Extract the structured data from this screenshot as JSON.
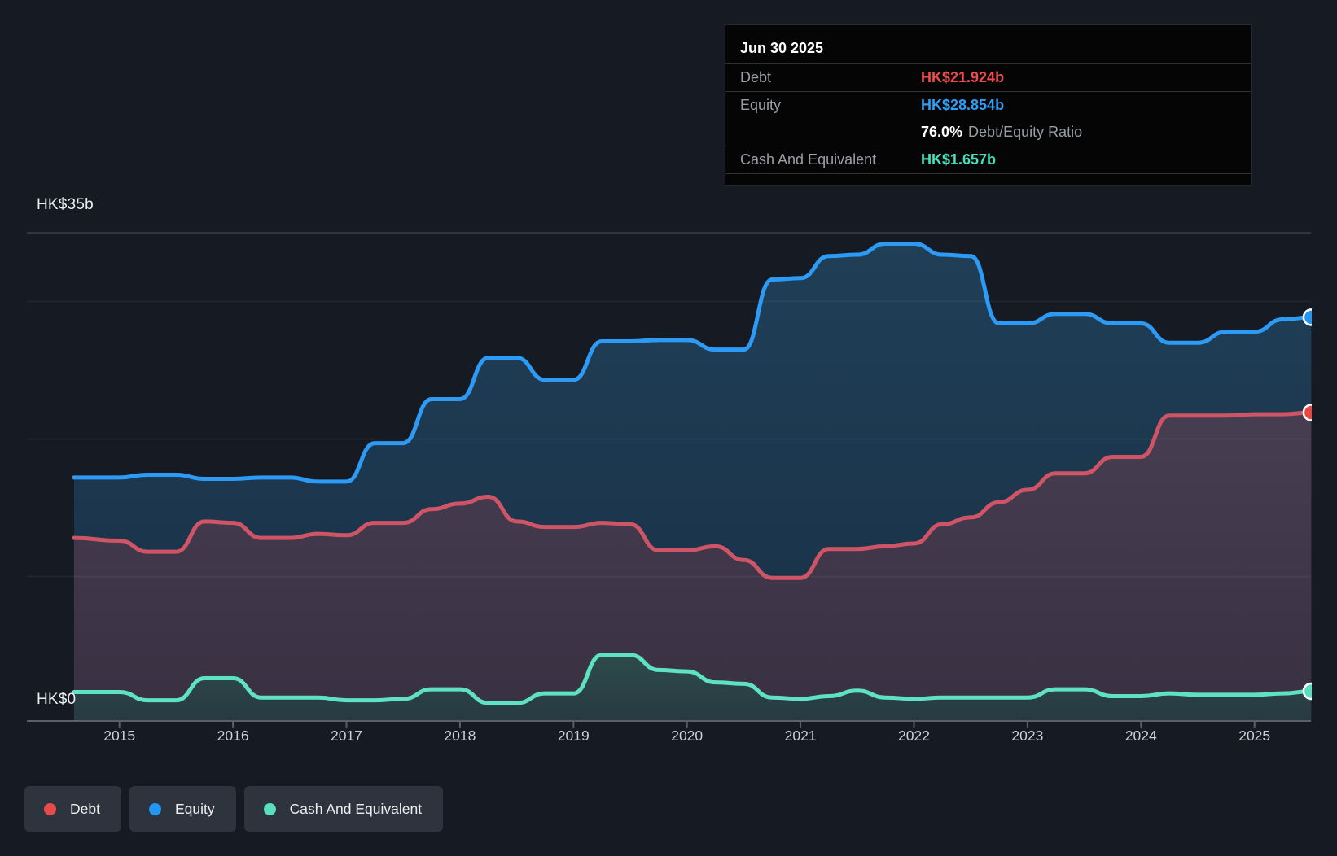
{
  "tooltip": {
    "date": "Jun 30 2025",
    "debt_label": "Debt",
    "debt_value": "HK$21.924b",
    "equity_label": "Equity",
    "equity_value": "HK$28.854b",
    "ratio_value": "76.0%",
    "ratio_label": "Debt/Equity Ratio",
    "cash_label": "Cash And Equivalent",
    "cash_value": "HK$1.657b",
    "debt_color": "#f04b4c",
    "equity_color": "#2f9ef5",
    "cash_color": "#42e1bd"
  },
  "axis": {
    "y_top_label": "HK$35b",
    "y_zero_label": "HK$0"
  },
  "legend": [
    {
      "label": "Debt",
      "color": "#e8494a"
    },
    {
      "label": "Equity",
      "color": "#2196f3"
    },
    {
      "label": "Cash And Equivalent",
      "color": "#57dfc0"
    }
  ],
  "colors": {
    "background": "#151a23",
    "gridline_top": "rgba(255,255,255,0.17)",
    "gridline": "rgba(255,255,255,0.055)",
    "axis_line": "#596069"
  },
  "chart_data": {
    "type": "area",
    "xlabel": "",
    "ylabel": "HK$ billions",
    "ylim": [
      0,
      35
    ],
    "y_gridlines": [
      35,
      30,
      20,
      10
    ],
    "x_axis_years": [
      2015,
      2016,
      2017,
      2018,
      2019,
      2020,
      2021,
      2022,
      2023,
      2024,
      2025
    ],
    "x_range": [
      2014.6,
      2025.5
    ],
    "last_point_date": "Jun 30 2025",
    "x": [
      2014.6,
      2015,
      2015.25,
      2015.5,
      2015.75,
      2016,
      2016.25,
      2016.5,
      2016.75,
      2017,
      2017.25,
      2017.5,
      2017.75,
      2018,
      2018.25,
      2018.5,
      2018.75,
      2019,
      2019.25,
      2019.5,
      2019.75,
      2020,
      2020.25,
      2020.5,
      2020.75,
      2021,
      2021.25,
      2021.5,
      2021.75,
      2022,
      2022.25,
      2022.5,
      2022.75,
      2023,
      2023.25,
      2023.5,
      2023.75,
      2024,
      2024.25,
      2024.5,
      2024.75,
      2025,
      2025.25,
      2025.5
    ],
    "series": [
      {
        "name": "Equity",
        "line_color": "#2d9bf5",
        "marker_color": "#2196f3",
        "values": [
          17.2,
          17.2,
          17.4,
          17.4,
          17.1,
          17.1,
          17.2,
          17.2,
          16.9,
          16.9,
          19.7,
          19.7,
          22.9,
          22.9,
          25.9,
          25.9,
          24.3,
          24.3,
          27.1,
          27.1,
          27.2,
          27.2,
          26.5,
          26.5,
          31.6,
          31.7,
          33.3,
          33.4,
          34.2,
          34.2,
          33.4,
          33.3,
          28.4,
          28.4,
          29.1,
          29.1,
          28.4,
          28.4,
          27.0,
          27.0,
          27.8,
          27.8,
          28.7,
          28.854
        ]
      },
      {
        "name": "Debt",
        "line_color": "#cf5566",
        "marker_color": "#ee4343",
        "values": [
          12.8,
          12.6,
          11.8,
          11.8,
          14.0,
          13.9,
          12.8,
          12.8,
          13.1,
          13.0,
          13.9,
          13.9,
          14.9,
          15.3,
          15.8,
          14.0,
          13.6,
          13.6,
          13.9,
          13.8,
          11.9,
          11.9,
          12.2,
          11.2,
          9.9,
          9.9,
          12.0,
          12.0,
          12.2,
          12.4,
          13.8,
          14.3,
          15.4,
          16.3,
          17.5,
          17.5,
          18.7,
          18.7,
          21.7,
          21.7,
          21.7,
          21.8,
          21.8,
          21.924
        ]
      },
      {
        "name": "Cash And Equivalent",
        "line_color": "#5fe2c3",
        "marker_color": "#57dfc0",
        "values": [
          1.6,
          1.6,
          1.0,
          1.0,
          2.6,
          2.6,
          1.2,
          1.2,
          1.2,
          1.0,
          1.0,
          1.1,
          1.8,
          1.8,
          0.8,
          0.8,
          1.5,
          1.5,
          4.3,
          4.3,
          3.2,
          3.1,
          2.3,
          2.2,
          1.2,
          1.1,
          1.3,
          1.7,
          1.2,
          1.1,
          1.2,
          1.2,
          1.2,
          1.2,
          1.8,
          1.8,
          1.3,
          1.3,
          1.5,
          1.4,
          1.4,
          1.4,
          1.5,
          1.657
        ]
      }
    ]
  }
}
